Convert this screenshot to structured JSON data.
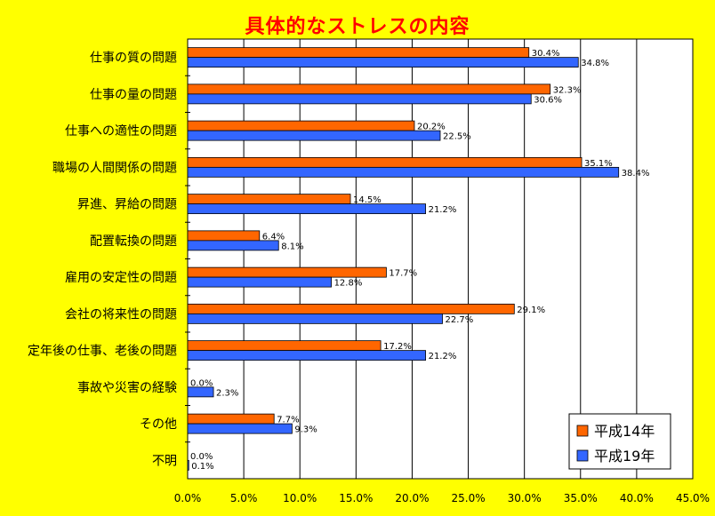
{
  "chart_data": {
    "type": "bar",
    "orientation": "horizontal",
    "title": "具体的なストレスの内容",
    "categories": [
      "仕事の質の問題",
      "仕事の量の問題",
      "仕事への適性の問題",
      "職場の人間関係の問題",
      "昇進、昇給の問題",
      "配置転換の問題",
      "雇用の安定性の問題",
      "会社の将来性の問題",
      "定年後の仕事、老後の問題",
      "事故や災害の経験",
      "その他",
      "不明"
    ],
    "series": [
      {
        "name": "平成14年",
        "color": "#FF6600",
        "values": [
          30.4,
          32.3,
          20.2,
          35.1,
          14.5,
          6.4,
          17.7,
          29.1,
          17.2,
          0.0,
          7.7,
          0.0
        ],
        "labels": [
          "30.4%",
          "32.3%",
          "20.2%",
          "35.1%",
          "14.5%",
          "6.4%",
          "17.7%",
          "29.1%",
          "17.2%",
          "0.0%",
          "7.7%",
          "0.0%"
        ]
      },
      {
        "name": "平成19年",
        "color": "#3366FF",
        "values": [
          34.8,
          30.6,
          22.5,
          38.4,
          21.2,
          8.1,
          12.8,
          22.7,
          21.2,
          2.3,
          9.3,
          0.1
        ],
        "labels": [
          "34.8%",
          "30.6%",
          "22.5%",
          "38.4%",
          "21.2%",
          "8.1%",
          "12.8%",
          "22.7%",
          "21.2%",
          "2.3%",
          "9.3%",
          "0.1%"
        ]
      }
    ],
    "xlim": [
      0,
      45
    ],
    "xticks": [
      "0.0%",
      "5.0%",
      "10.0%",
      "15.0%",
      "20.0%",
      "25.0%",
      "30.0%",
      "35.0%",
      "40.0%",
      "45.0%"
    ],
    "grid": true,
    "legend_position": "bottom-right",
    "colors": {
      "background": "#FFFF00",
      "plot_background": "#FFFFFF",
      "title": "#FF0000"
    }
  }
}
